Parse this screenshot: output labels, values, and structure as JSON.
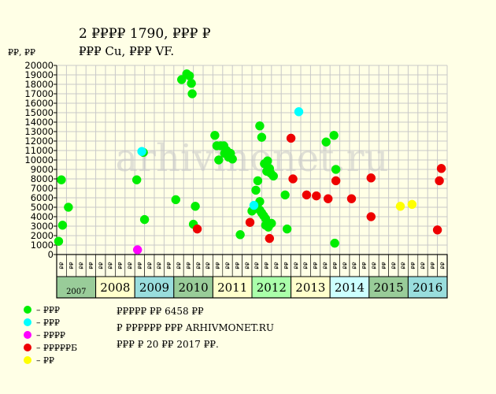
{
  "title": "2 ₽₽₽₽ 1790, ₽₽₽ ₽",
  "subtitle": "₽₽₽ Cu, ₽₽₽ VF.",
  "y_unit": "₽₽, ₽₽",
  "watermark": "arhivmonet.ru",
  "footer": {
    "line1": "₽₽₽₽₽ ₽₽ 6458 ₽₽",
    "line2": "₽ ₽₽₽₽₽₽ ₽₽₽ ARHIVMONET.RU",
    "line3": "₽₽₽ ₽ 20 ₽₽ 2017 ₽₽."
  },
  "legend": [
    {
      "label": "– ₽₽₽",
      "color": "#00ee00"
    },
    {
      "label": "– ₽₽₽",
      "color": "#00ffff"
    },
    {
      "label": "– ₽₽₽₽",
      "color": "#ff00ff"
    },
    {
      "label": "– ₽₽₽₽₽Б",
      "color": "#ee0000"
    },
    {
      "label": "– ₽₽",
      "color": "#ffff00"
    }
  ],
  "chart_data": {
    "type": "scatter",
    "ylim": [
      0,
      20000
    ],
    "y_ticks": [
      0,
      1000,
      2000,
      3000,
      4000,
      5000,
      6000,
      7000,
      8000,
      9000,
      10000,
      11000,
      12000,
      13000,
      14000,
      15000,
      16000,
      17000,
      18000,
      19000,
      20000
    ],
    "grid": true,
    "years": [
      {
        "label": "2007",
        "color": "#99cc99"
      },
      {
        "label": "2008",
        "color": "#ffffcc"
      },
      {
        "label": "2009",
        "color": "#99dddd"
      },
      {
        "label": "2010",
        "color": "#99cc99"
      },
      {
        "label": "2011",
        "color": "#ffffcc"
      },
      {
        "label": "2012",
        "color": "#aaffaa"
      },
      {
        "label": "2013",
        "color": "#ffffcc"
      },
      {
        "label": "2014",
        "color": "#ccffff"
      },
      {
        "label": "2015",
        "color": "#99cc99"
      },
      {
        "label": "2016",
        "color": "#99dddd"
      }
    ],
    "half_labels": [
      "₽₽",
      "₽₽"
    ],
    "series": [
      {
        "color": "#00ee00",
        "points": [
          [
            2007.05,
            1400
          ],
          [
            2007.12,
            7900
          ],
          [
            2007.15,
            3100
          ],
          [
            2007.3,
            5000
          ],
          [
            2009.05,
            7900
          ],
          [
            2009.22,
            10800
          ],
          [
            2009.25,
            3700
          ],
          [
            2010.05,
            5800
          ],
          [
            2010.2,
            18500
          ],
          [
            2010.33,
            19100
          ],
          [
            2010.4,
            18900
          ],
          [
            2010.45,
            18100
          ],
          [
            2010.47,
            17000
          ],
          [
            2010.5,
            3200
          ],
          [
            2010.55,
            5100
          ],
          [
            2011.05,
            12600
          ],
          [
            2011.1,
            11500
          ],
          [
            2011.15,
            10000
          ],
          [
            2011.2,
            11500
          ],
          [
            2011.28,
            11500
          ],
          [
            2011.3,
            10700
          ],
          [
            2011.35,
            11000
          ],
          [
            2011.4,
            10300
          ],
          [
            2011.45,
            10700
          ],
          [
            2011.5,
            10100
          ],
          [
            2011.7,
            2100
          ],
          [
            2012.0,
            4600
          ],
          [
            2012.1,
            6800
          ],
          [
            2012.15,
            7800
          ],
          [
            2012.2,
            13600
          ],
          [
            2012.25,
            12400
          ],
          [
            2012.2,
            4700
          ],
          [
            2012.25,
            4400
          ],
          [
            2012.3,
            4100
          ],
          [
            2012.32,
            9600
          ],
          [
            2012.35,
            3800
          ],
          [
            2012.35,
            3100
          ],
          [
            2012.38,
            8800
          ],
          [
            2012.4,
            9900
          ],
          [
            2012.42,
            2900
          ],
          [
            2012.45,
            9100
          ],
          [
            2012.48,
            8600
          ],
          [
            2012.5,
            3300
          ],
          [
            2012.55,
            8300
          ],
          [
            2012.2,
            5600
          ],
          [
            2012.85,
            6300
          ],
          [
            2012.9,
            2700
          ],
          [
            2013.9,
            11900
          ],
          [
            2014.1,
            12600
          ],
          [
            2014.15,
            9000
          ],
          [
            2014.12,
            1200
          ]
        ]
      },
      {
        "color": "#00ffff",
        "points": [
          [
            2009.18,
            10900
          ],
          [
            2012.05,
            5200
          ],
          [
            2013.2,
            15100
          ]
        ]
      },
      {
        "color": "#ff00ff",
        "points": [
          [
            2009.07,
            500
          ]
        ]
      },
      {
        "color": "#ee0000",
        "points": [
          [
            2010.6,
            2700
          ],
          [
            2011.95,
            3400
          ],
          [
            2012.45,
            1700
          ],
          [
            2013.0,
            12300
          ],
          [
            2013.05,
            8000
          ],
          [
            2013.4,
            6300
          ],
          [
            2013.65,
            6200
          ],
          [
            2013.95,
            5900
          ],
          [
            2014.15,
            7800
          ],
          [
            2014.55,
            5900
          ],
          [
            2015.05,
            8100
          ],
          [
            2015.05,
            4000
          ],
          [
            2016.75,
            2600
          ],
          [
            2016.8,
            7800
          ],
          [
            2016.85,
            9100
          ]
        ]
      },
      {
        "color": "#ffff00",
        "points": [
          [
            2015.8,
            5100
          ],
          [
            2016.1,
            5300
          ]
        ]
      }
    ]
  }
}
